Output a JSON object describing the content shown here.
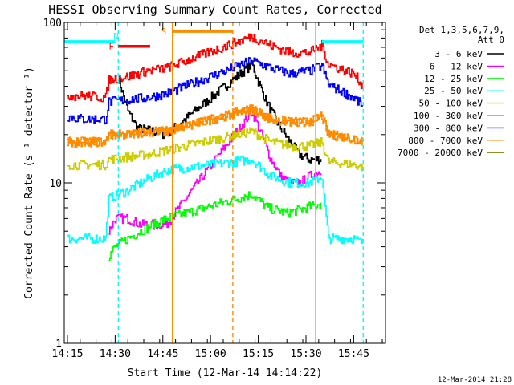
{
  "chart_data": {
    "type": "line",
    "title": "HESSI Observing Summary Count Rates, Corrected",
    "xlabel": "Start Time (12-Mar-14 14:14:22)",
    "ylabel": "Corrected Count Rate (s⁻¹ detector⁻¹)",
    "y_scale": "log",
    "ylim": [
      1,
      100
    ],
    "xlim": [
      "14:14",
      "15:55"
    ],
    "y_ticks": [
      "1",
      "10",
      "100"
    ],
    "x_ticks": [
      "14:15",
      "14:30",
      "14:45",
      "15:00",
      "15:15",
      "15:30",
      "15:45"
    ],
    "timestamp": "12-Mar-2014 21:28",
    "legend_header": [
      "Det 1,3,5,6,7,9,",
      "Att 0"
    ],
    "legend_placement": "right",
    "series": [
      {
        "name": "3 - 6 keV",
        "color": "#000000",
        "x": [
          "14:14",
          "14:28",
          "14:29",
          "14:31",
          "14:34",
          "14:37",
          "14:42",
          "14:46",
          "15:13",
          "15:16",
          "15:19",
          "15:22",
          "15:25",
          "15:28",
          "15:31",
          "15:35"
        ],
        "values": [
          null,
          null,
          null,
          45,
          28,
          22,
          21,
          20,
          55,
          38,
          28,
          22,
          18,
          15,
          14,
          14
        ]
      },
      {
        "name": "6 - 12 keV",
        "color": "#ff00ff",
        "x": [
          "14:28",
          "14:30",
          "14:34",
          "14:38",
          "14:46",
          "15:13",
          "15:16",
          "15:19",
          "15:22",
          "15:25",
          "15:28",
          "15:31",
          "15:35"
        ],
        "values": [
          5,
          6,
          6,
          5.5,
          5.5,
          28,
          20,
          14,
          11,
          10,
          10,
          11,
          12
        ]
      },
      {
        "name": "12 - 25 keV",
        "color": "#00ff00",
        "x": [
          "14:28",
          "14:30",
          "14:34",
          "14:38",
          "14:42",
          "14:46",
          "15:13",
          "15:18",
          "15:24",
          "15:30",
          "15:35"
        ],
        "values": [
          3.5,
          4,
          4.5,
          5,
          5.5,
          6,
          8.5,
          7,
          6.5,
          7,
          7.5
        ]
      },
      {
        "name": "25 - 50 keV",
        "color": "#00ffff",
        "x": [
          "14:15",
          "14:20",
          "14:27",
          "14:28",
          "14:34",
          "14:40",
          "14:46",
          "15:13",
          "15:19",
          "15:25",
          "15:31",
          "15:35",
          "15:37",
          "15:45",
          "15:48"
        ],
        "values": [
          4.5,
          4.5,
          4.5,
          8,
          9,
          10.5,
          12,
          14,
          11,
          10,
          10,
          11,
          4.5,
          4.5,
          4.2
        ]
      },
      {
        "name": "50 - 100 keV",
        "color": "#cccc00",
        "x": [
          "14:15",
          "14:20",
          "14:27",
          "14:28",
          "14:34",
          "14:40",
          "14:46",
          "15:13",
          "15:19",
          "15:25",
          "15:31",
          "15:35",
          "15:37",
          "15:45",
          "15:48"
        ],
        "values": [
          13,
          13,
          13,
          14,
          14.5,
          15,
          16,
          21,
          18,
          17,
          17,
          18,
          13.5,
          13,
          12.5
        ]
      },
      {
        "name": "100 - 300 keV",
        "color": "#ff8c00",
        "x": [
          "14:15",
          "14:20",
          "14:27",
          "14:28",
          "14:34",
          "14:40",
          "14:46",
          "15:13",
          "15:19",
          "15:25",
          "15:31",
          "15:35",
          "15:37",
          "15:45",
          "15:48"
        ],
        "values": [
          18,
          18,
          18,
          20,
          20,
          21,
          21,
          29,
          25,
          24,
          24,
          26,
          20,
          19,
          18
        ]
      },
      {
        "name": "300 - 800 keV",
        "color": "#0000ff",
        "x": [
          "14:15",
          "14:20",
          "14:27",
          "14:28",
          "14:34",
          "14:40",
          "14:46",
          "15:13",
          "15:19",
          "15:25",
          "15:31",
          "15:35",
          "15:37",
          "15:45",
          "15:48"
        ],
        "values": [
          26,
          25,
          25,
          32,
          33,
          34,
          36,
          58,
          52,
          48,
          50,
          54,
          41,
          34,
          30
        ]
      },
      {
        "name": "800 - 7000 keV",
        "color": "#ff8c00",
        "x": [
          "14:15",
          "14:20",
          "14:27",
          "14:28",
          "14:34",
          "14:40",
          "14:46",
          "15:13",
          "15:19",
          "15:25",
          "15:31",
          "15:35",
          "15:37",
          "15:45",
          "15:48"
        ],
        "values": [
          18,
          18,
          18,
          20,
          20,
          21,
          21,
          29,
          25,
          24,
          24,
          26,
          20,
          19,
          18
        ]
      },
      {
        "name": "7000 - 20000 keV",
        "color": "#808000",
        "x": [
          "14:15",
          "14:46",
          "15:13",
          "15:48"
        ],
        "values": [
          null,
          null,
          null,
          null
        ]
      },
      {
        "name": "",
        "color": "#ff0000",
        "x": [
          "14:15",
          "14:20",
          "14:27",
          "14:28",
          "14:34",
          "14:40",
          "14:46",
          "15:13",
          "15:19",
          "15:25",
          "15:31",
          "15:35",
          "15:37",
          "15:45",
          "15:48"
        ],
        "values": [
          35,
          35,
          34,
          44,
          46,
          50,
          52,
          82,
          72,
          65,
          65,
          72,
          55,
          48,
          40
        ]
      }
    ],
    "flags": [
      {
        "label": "F",
        "color": "#ff0000",
        "x_start": "14:31",
        "x_end": "14:41",
        "y": 71
      },
      {
        "label": "N",
        "color": "#00ffff",
        "x_start": "14:14",
        "x_end": "14:30",
        "y": 76
      },
      {
        "label": "N",
        "color": "#00ffff",
        "x_start": "15:35",
        "x_end": "15:48",
        "y": 76
      },
      {
        "label": "S",
        "color": "#ff8c00",
        "x_start": "14:48",
        "x_end": "15:07",
        "y": 88
      }
    ],
    "vlines": [
      {
        "x": "14:31",
        "color": "#00ffff",
        "style": "dashed"
      },
      {
        "x": "14:48",
        "color": "#ff8c00",
        "style": "solid"
      },
      {
        "x": "15:07",
        "color": "#ff8c00",
        "style": "dashed"
      },
      {
        "x": "15:33",
        "color": "#00ffff",
        "style": "solid"
      },
      {
        "x": "15:48",
        "color": "#00ffff",
        "style": "dashed"
      }
    ]
  }
}
